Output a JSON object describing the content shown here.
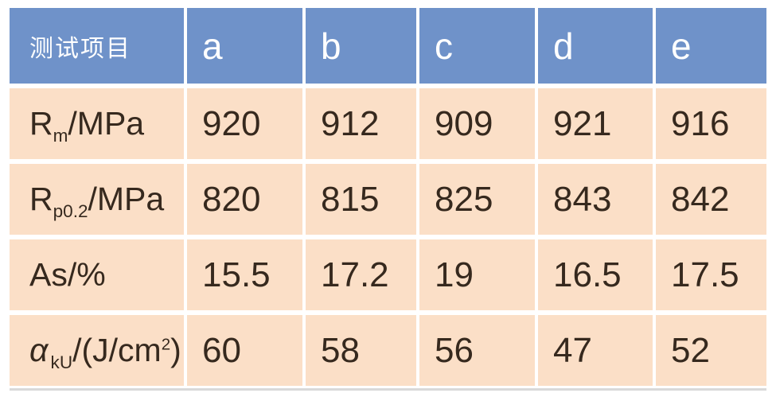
{
  "chart_data": {
    "type": "table",
    "title": "",
    "columns": [
      "测试项目",
      "a",
      "b",
      "c",
      "d",
      "e"
    ],
    "rows": [
      [
        "Rm/MPa",
        920,
        912,
        909,
        921,
        916
      ],
      [
        "Rp0.2/MPa",
        820,
        815,
        825,
        843,
        842
      ],
      [
        "As/%",
        15.5,
        17.2,
        19,
        16.5,
        17.5
      ],
      [
        "αkU/(J/cm2)",
        60,
        58,
        56,
        47,
        52
      ]
    ],
    "layout_hints": {
      "header_row": true,
      "first_column_is_label": true,
      "grid": "white gaps between cells"
    }
  },
  "labels": [
    {
      "pre": "R",
      "sub": "m",
      "post": "/MPa",
      "sup": "",
      "end": ""
    },
    {
      "pre": "R",
      "sub": "p0.2",
      "post": "/MPa",
      "sup": "",
      "end": ""
    },
    {
      "pre": "As/%",
      "sub": "",
      "post": "",
      "sup": "",
      "end": ""
    },
    {
      "pre": "α",
      "sub": "kU",
      "post": "/(J/cm",
      "sup": "2",
      "end": ")"
    }
  ],
  "colors": {
    "header_bg": "#6F92C9",
    "header_text": "#FFFFFF",
    "row_bg": "#FBDFC7",
    "body_text": "#36291E",
    "faint_line": "#D9D9D9"
  }
}
